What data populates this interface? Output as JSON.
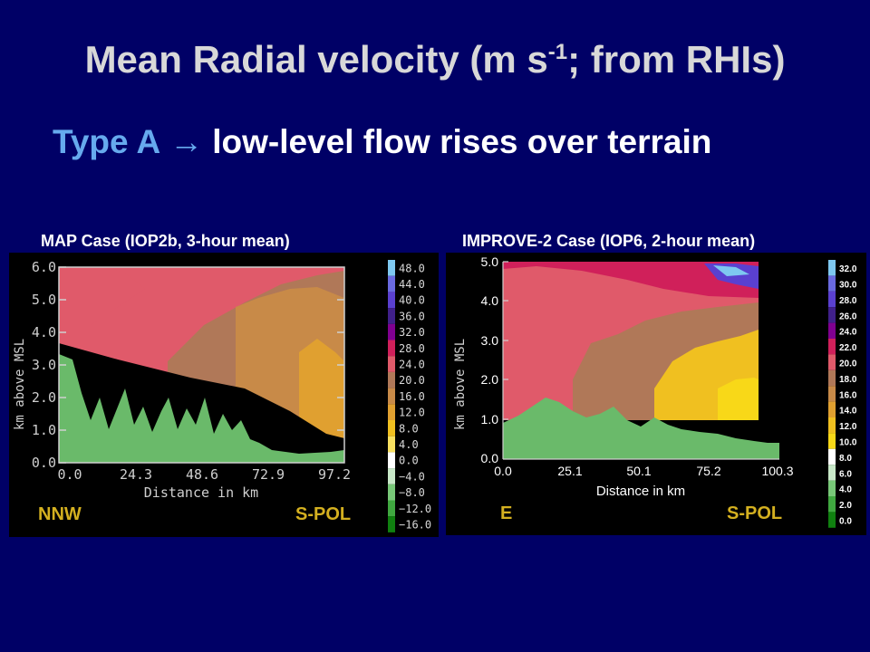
{
  "slide": {
    "title_main": "Mean Radial velocity (m s",
    "title_sup": "-1",
    "title_tail": "; from RHIs)",
    "subtitle_type": "Type A",
    "subtitle_arrow": "→",
    "subtitle_text": "low-level flow rises over terrain"
  },
  "left_panel": {
    "title": "MAP Case (IOP2b, 3-hour mean)",
    "ylabel": "km above MSL",
    "xlabel": "Distance in km",
    "yticks": [
      "6.0",
      "5.0",
      "4.0",
      "3.0",
      "2.0",
      "1.0",
      "0.0"
    ],
    "xticks": [
      "0.0",
      "24.3",
      "48.6",
      "72.9",
      "97.2"
    ],
    "left_dir": "NNW",
    "right_dir": "S-POL",
    "colorbar": [
      "48.0",
      "44.0",
      "40.0",
      "36.0",
      "32.0",
      "28.0",
      "24.0",
      "20.0",
      "16.0",
      "12.0",
      "8.0",
      "4.0",
      "0.0",
      "−4.0",
      "−8.0",
      "−12.0",
      "−16.0"
    ],
    "colorbar_colors": [
      "#7ec8f0",
      "#6a6ae0",
      "#5a40d0",
      "#40208a",
      "#800090",
      "#d0205a",
      "#e05a6a",
      "#b07858",
      "#c88a48",
      "#e0a030",
      "#f0c020",
      "#f8e060",
      "#ffffff",
      "#c8e8c8",
      "#78c878",
      "#40a840",
      "#108010"
    ]
  },
  "right_panel": {
    "title": "IMPROVE-2 Case (IOP6, 2-hour mean)",
    "ylabel": "km above MSL",
    "xlabel": "Distance in km",
    "yticks": [
      "5.0",
      "4.0",
      "3.0",
      "2.0",
      "1.0",
      "0.0"
    ],
    "xticks": [
      "0.0",
      "25.1",
      "50.1",
      "75.2",
      "100.3"
    ],
    "left_dir": "E",
    "right_dir": "S-POL",
    "colorbar": [
      "32.0",
      "30.0",
      "28.0",
      "26.0",
      "24.0",
      "22.0",
      "20.0",
      "18.0",
      "16.0",
      "14.0",
      "12.0",
      "10.0",
      "8.0",
      "6.0",
      "4.0",
      "2.0",
      "0.0"
    ],
    "colorbar_colors": [
      "#7ec8f0",
      "#6a6ae0",
      "#5a40d0",
      "#40208a",
      "#800090",
      "#d0205a",
      "#e05a6a",
      "#b07858",
      "#c88a48",
      "#e0a030",
      "#f0c020",
      "#f8d818",
      "#ffffff",
      "#c8e8c8",
      "#78c878",
      "#40a840",
      "#108010"
    ]
  }
}
